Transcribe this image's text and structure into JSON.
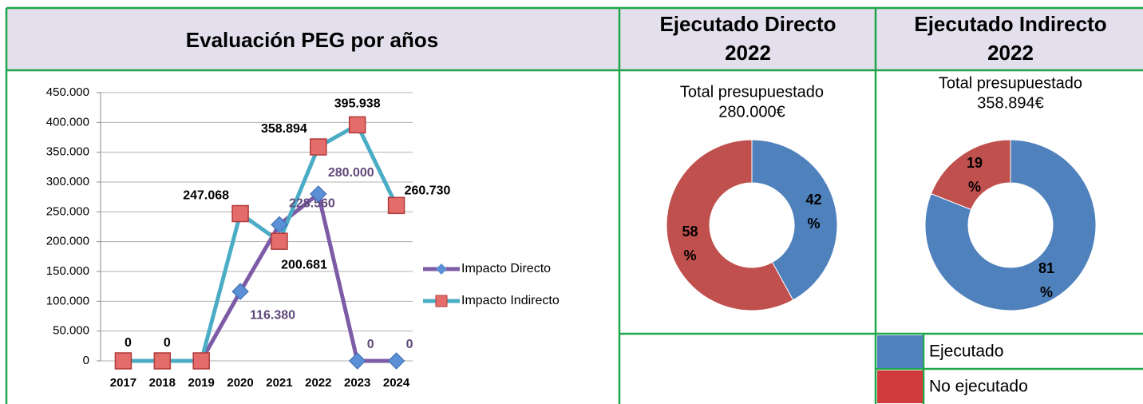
{
  "headers": [
    [
      "Evaluación PEG por años"
    ],
    [
      "Ejecutado Directo",
      "2022"
    ],
    [
      "Ejecutado Indirecto",
      "2022"
    ]
  ],
  "chart_data": [
    {
      "type": "line",
      "categories": [
        "2017",
        "2018",
        "2019",
        "2020",
        "2021",
        "2022",
        "2023",
        "2024"
      ],
      "series": [
        {
          "name": "Impacto Directo",
          "color": "#7d5ba6",
          "marker_color": "#5b8fd6",
          "values": [
            0,
            0,
            0,
            116380,
            228560,
            280000,
            0,
            0
          ],
          "value_labels": [
            null,
            null,
            null,
            "116.380",
            "228.560",
            "280.000",
            "0",
            "0"
          ]
        },
        {
          "name": "Impacto Indirecto",
          "color": "#4bacc6",
          "marker_color": "#e46c6a",
          "values": [
            0,
            0,
            0,
            247068,
            200681,
            358894,
            395938,
            260730
          ],
          "value_labels": [
            "0",
            "0",
            null,
            "247.068",
            "200.681",
            "358.894",
            "395.938",
            "260.730"
          ]
        }
      ],
      "ylim": [
        0,
        450000
      ],
      "yticks": [
        0,
        {
          "value": 50000,
          "label": "50.000"
        },
        {
          "value": 100000,
          "label": "100.000"
        },
        {
          "value": 150000,
          "label": "150.000"
        },
        {
          "value": 200000,
          "label": "200.000"
        },
        {
          "value": 250000,
          "label": "250.000"
        },
        {
          "value": 300000,
          "label": "300.000"
        },
        {
          "value": 350000,
          "label": "350.000"
        },
        {
          "value": 400000,
          "label": "400.000"
        },
        {
          "value": 450000,
          "label": "450.000"
        }
      ],
      "grid": true,
      "legend": "right"
    },
    {
      "type": "donut",
      "subtitle": [
        "Total presupuestado",
        "280.000€"
      ],
      "categories": [
        "Ejecutado",
        "No ejecutado"
      ],
      "values": [
        42,
        58
      ],
      "value_labels": [
        "42 %",
        "58 %"
      ],
      "colors": [
        "#4f81bd",
        "#c0504d"
      ]
    },
    {
      "type": "donut",
      "subtitle": [
        "Total presupuestado",
        "358.894€"
      ],
      "categories": [
        "Ejecutado",
        "No ejecutado"
      ],
      "values": [
        81,
        19
      ],
      "value_labels": [
        "81 %",
        "19 %"
      ],
      "colors": [
        "#4f81bd",
        "#c0504d"
      ],
      "legend_colors": [
        "#4f81bd",
        "#d13b3b"
      ]
    }
  ]
}
